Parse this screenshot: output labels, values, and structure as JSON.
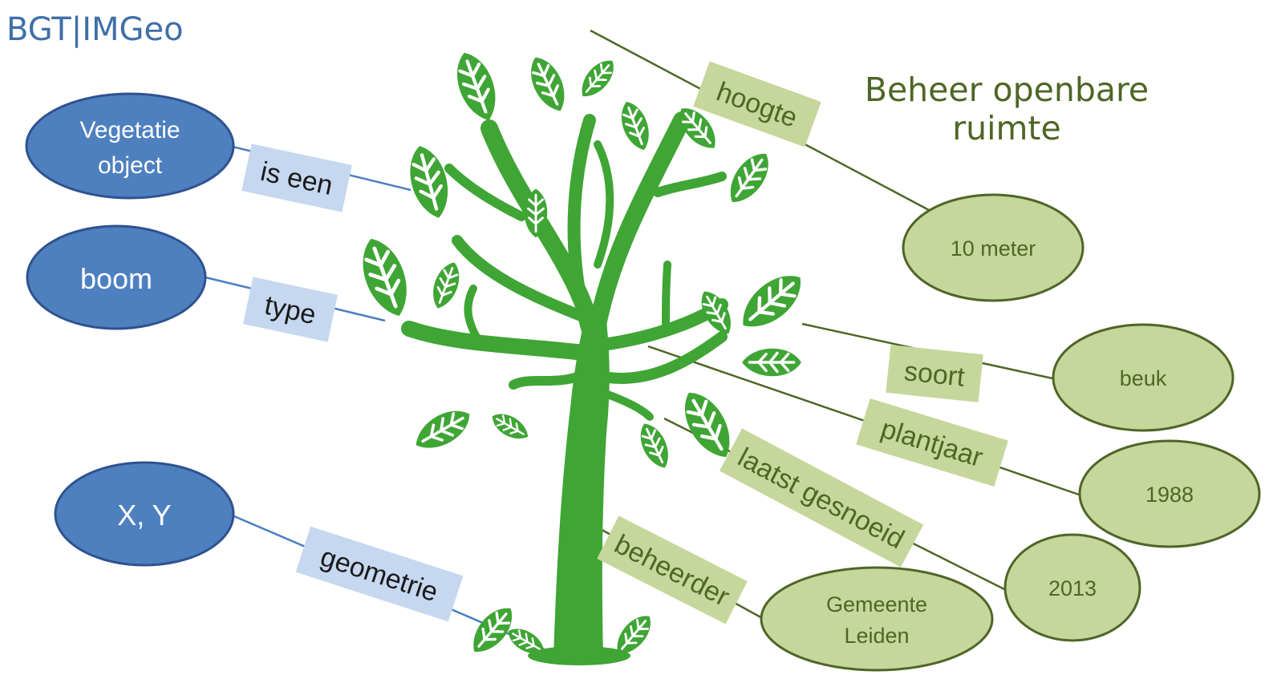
{
  "title": "BGT|IMGeo",
  "heading_line1": "Beheer openbare",
  "heading_line2": "ruimte",
  "colors": {
    "blue_fill": "#4e80c0",
    "blue_stroke": "#2f528f",
    "blue_label": "#c6d8ef",
    "blue_line": "#4a7ec0",
    "green_fill": "#c6d79c",
    "green_stroke": "#4e6626",
    "green_label": "#c6d79c",
    "green_line": "#4e6626",
    "tree": "#3fa535"
  },
  "blue_nodes": {
    "vegetatie_line1": "Vegetatie",
    "vegetatie_line2": "object",
    "boom": "boom",
    "xy": "X, Y"
  },
  "blue_relations": {
    "is_een": "is een",
    "type": "type",
    "geometrie": "geometrie"
  },
  "green_relations": {
    "hoogte": "hoogte",
    "soort": "soort",
    "plantjaar": "plantjaar",
    "laatst_gesnoeid": "laatst gesnoeid",
    "beheerder": "beheerder"
  },
  "green_values": {
    "hoogte": "10 meter",
    "soort": "beuk",
    "plantjaar": "1988",
    "laatst_gesnoeid": "2013",
    "beheerder_line1": "Gemeente",
    "beheerder_line2": "Leiden"
  }
}
